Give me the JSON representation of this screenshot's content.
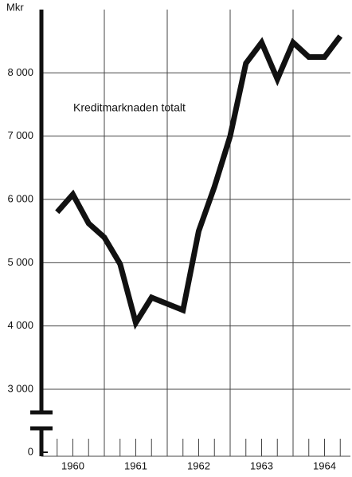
{
  "chart_data": {
    "type": "line",
    "y_unit_label": "Mkr",
    "annotation": "Kreditmarknaden totalt",
    "categories": [
      "1960",
      "1961",
      "1962",
      "1963",
      "1964"
    ],
    "x": [
      1960.25,
      1960.5,
      1960.75,
      1961,
      1961.25,
      1961.5,
      1961.75,
      1962,
      1962.25,
      1962.5,
      1962.75,
      1963,
      1963.25,
      1963.5,
      1963.75,
      1964,
      1964.25,
      1964.5,
      1964.75
    ],
    "series": [
      {
        "name": "Kreditmarknaden totalt",
        "color": "#111111",
        "values": [
          5800,
          6080,
          5620,
          5400,
          4980,
          4050,
          4450,
          4350,
          4250,
          5500,
          6200,
          7000,
          8150,
          8480,
          7900,
          8480,
          8250,
          8250,
          8580
        ]
      }
    ],
    "xlim": [
      1960,
      1965
    ],
    "xticks": [
      1961,
      1962,
      1963,
      1964
    ],
    "ylim": [
      0,
      9000
    ],
    "axis_break": [
      0,
      3000
    ],
    "yticks": [
      0,
      {
        "value": 3000,
        "label": "3 000"
      },
      {
        "value": 4000,
        "label": "4 000"
      },
      {
        "value": 5000,
        "label": "5 000"
      },
      {
        "value": 6000,
        "label": "6 000"
      },
      {
        "value": 7000,
        "label": "7 000"
      },
      {
        "value": 8000,
        "label": "8 000"
      }
    ],
    "grid": true
  }
}
